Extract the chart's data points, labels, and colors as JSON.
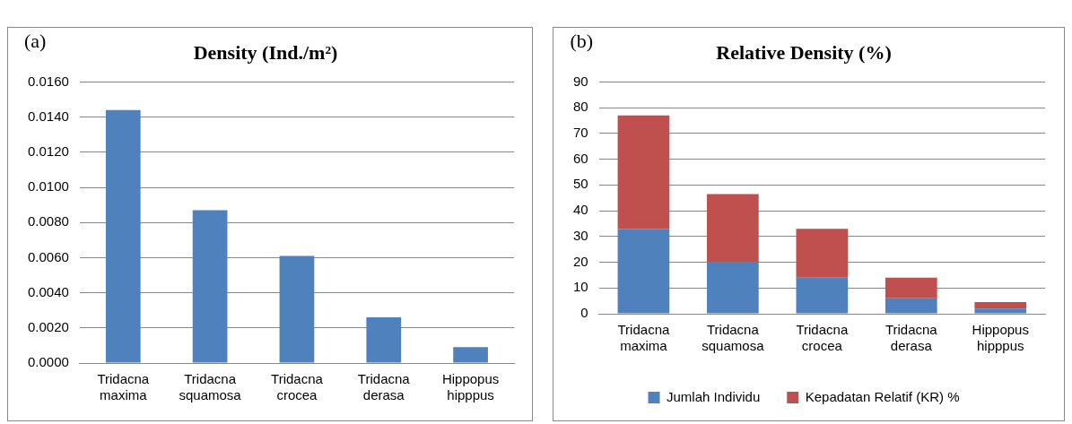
{
  "chart_data": [
    {
      "type": "bar",
      "title": "Density (Ind./m²)",
      "annotations": [
        "(a)"
      ],
      "categories": [
        "Tridacna maxima",
        "Tridacna squamosa",
        "Tridacna crocea",
        "Tridacna derasa",
        "Hippopus hipppus"
      ],
      "values": [
        0.0144,
        0.0087,
        0.0061,
        0.0026,
        0.0009
      ],
      "color": "#4f81bd",
      "ylim": [
        0,
        0.016
      ],
      "yticks": [
        {
          "value": 0,
          "label": "0.0000"
        },
        {
          "value": 0.002,
          "label": "0.0020"
        },
        {
          "value": 0.004,
          "label": "0.0040"
        },
        {
          "value": 0.006,
          "label": "0.0060"
        },
        {
          "value": 0.008,
          "label": "0.0080"
        },
        {
          "value": 0.01,
          "label": "0.0100"
        },
        {
          "value": 0.012,
          "label": "0.0120"
        },
        {
          "value": 0.014,
          "label": "0.0140"
        },
        {
          "value": 0.016,
          "label": "0.0160"
        }
      ],
      "grid": "y"
    },
    {
      "type": "bar",
      "title": "Relative Density (%)",
      "annotations": [
        "(b)"
      ],
      "stacked": true,
      "categories": [
        "Tridacna maxima",
        "Tridacna squamosa",
        "Tridacna crocea",
        "Tridacna derasa",
        "Hippopus hipppus"
      ],
      "series": [
        {
          "name": "Jumlah Individu",
          "color": "#4f81bd",
          "values": [
            33,
            20,
            14,
            6,
            2
          ]
        },
        {
          "name": "Kepadatan Relatif (KR) %",
          "color": "#c0504d",
          "values": [
            44,
            26.5,
            19,
            8,
            2.5
          ]
        }
      ],
      "ylim": [
        0,
        90
      ],
      "yticks": [
        0,
        10,
        20,
        30,
        40,
        50,
        60,
        70,
        80,
        90
      ],
      "grid": "y",
      "legend": "bottom"
    }
  ]
}
